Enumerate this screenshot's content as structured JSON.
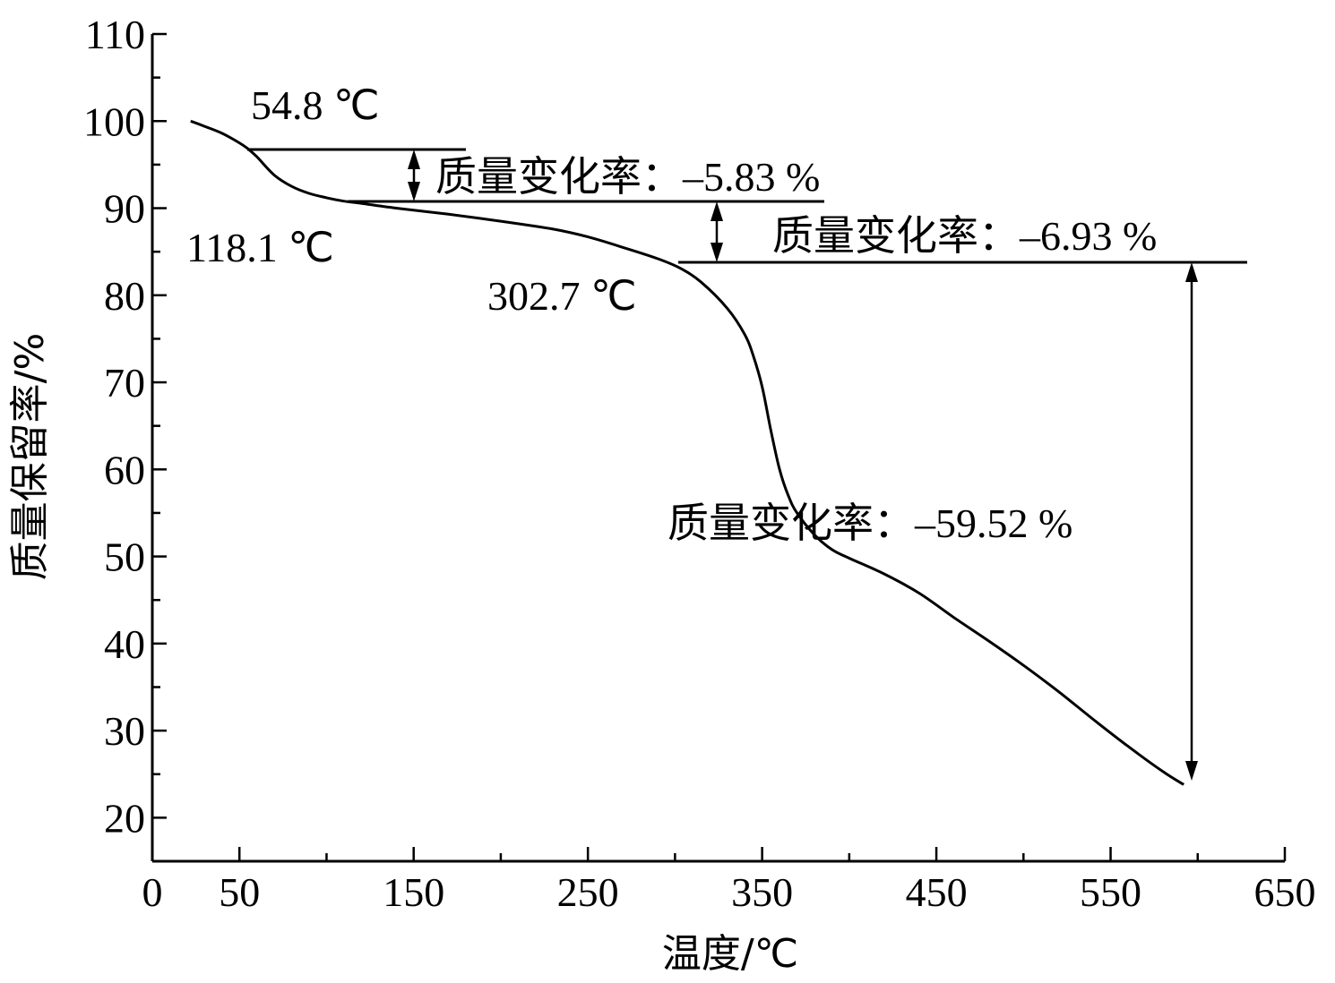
{
  "chart_data": {
    "type": "line",
    "title": "",
    "xlabel": "温度/℃",
    "ylabel": "质量保留率/%",
    "xlim": [
      0,
      650
    ],
    "ylim": [
      15,
      110
    ],
    "x_ticks": [
      0,
      50,
      150,
      250,
      350,
      450,
      550,
      650
    ],
    "x_tick_labels": [
      "0",
      "50",
      "150",
      "250",
      "350",
      "450",
      "550",
      "650"
    ],
    "y_ticks": [
      20,
      30,
      40,
      50,
      60,
      70,
      80,
      90,
      100,
      110
    ],
    "y_tick_labels": [
      "20",
      "30",
      "40",
      "50",
      "60",
      "70",
      "80",
      "90",
      "100",
      "110"
    ],
    "grid": false,
    "series": [
      {
        "color": "#000000",
        "x": [
          22,
          30,
          40,
          50,
          55,
          60,
          70,
          80,
          90,
          100,
          110,
          118,
          140,
          170,
          200,
          230,
          250,
          270,
          290,
          303,
          315,
          330,
          340,
          345,
          350,
          355,
          360,
          365,
          370,
          380,
          390,
          400,
          420,
          440,
          460,
          480,
          500,
          520,
          540,
          560,
          580,
          592
        ],
        "y": [
          100,
          99.4,
          98.6,
          97.5,
          96.8,
          95.9,
          93.8,
          92.5,
          91.7,
          91.2,
          90.8,
          90.6,
          90.0,
          89.3,
          88.5,
          87.6,
          86.7,
          85.5,
          84.2,
          83.1,
          81.5,
          78.5,
          75.5,
          73.0,
          69.5,
          64.5,
          60.0,
          57.0,
          55.0,
          52.5,
          50.8,
          49.8,
          48.0,
          45.8,
          43.0,
          40.3,
          37.5,
          34.5,
          31.3,
          28.2,
          25.3,
          23.8
        ]
      }
    ],
    "annotations": {
      "temp_1": "54.8 ℃",
      "temp_2": "118.1 ℃",
      "temp_3": "302.7 ℃",
      "change_1": "质量变化率：–5.83 %",
      "change_2": "质量变化率：–6.93 %",
      "change_3": "质量变化率：–59.52 %"
    }
  }
}
